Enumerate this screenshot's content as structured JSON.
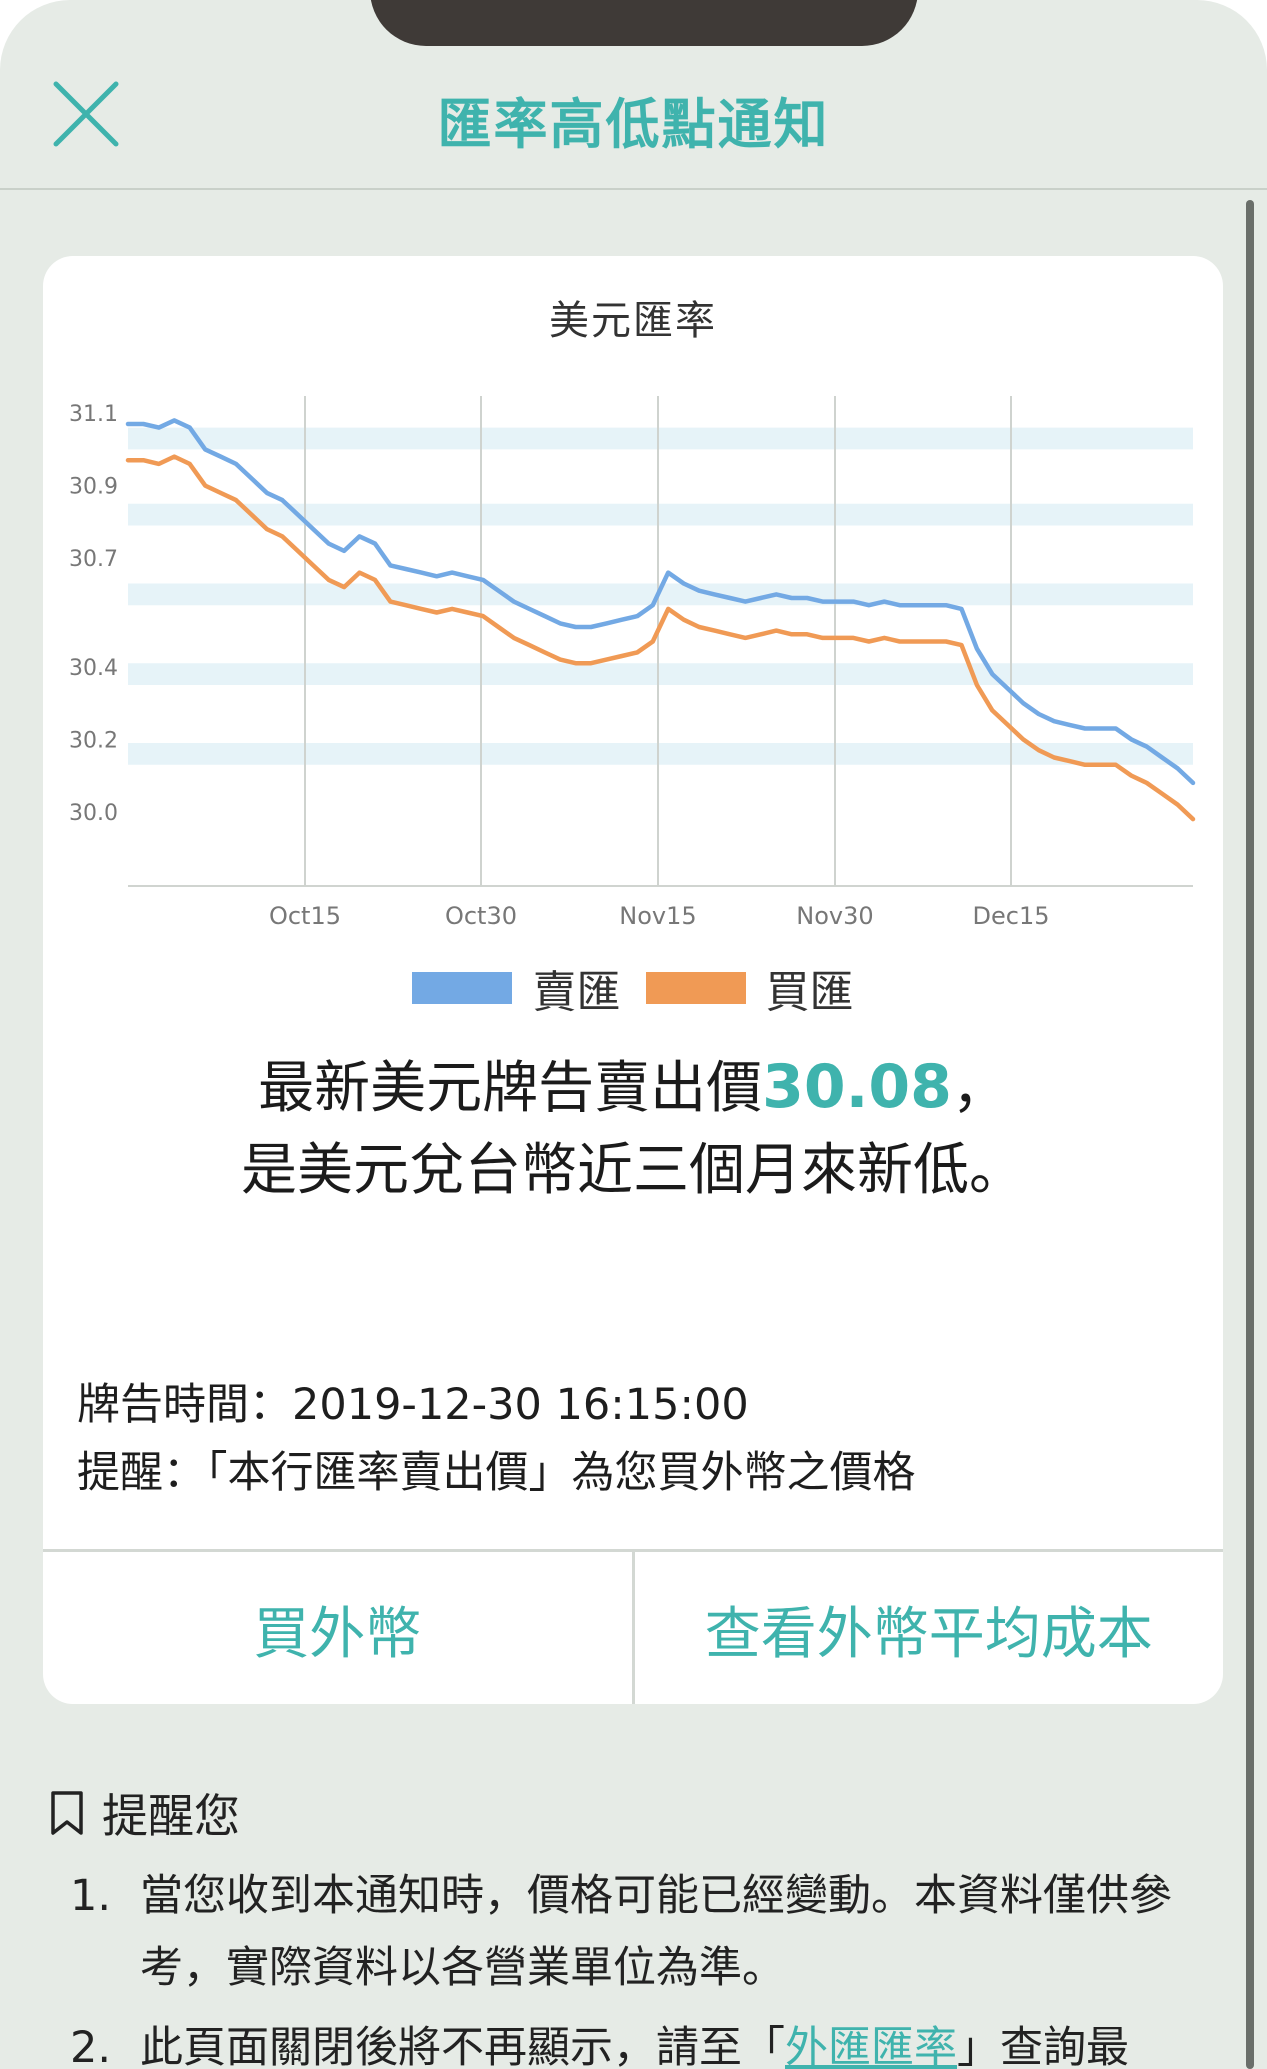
{
  "header": {
    "title": "匯率高低點通知"
  },
  "chart_data": {
    "type": "line",
    "title": "美元匯率",
    "x_ticks": [
      "Oct15",
      "Oct30",
      "Nov15",
      "Nov30",
      "Dec15"
    ],
    "y_ticks": [
      "31.1",
      "30.9",
      "30.7",
      "30.4",
      "30.2",
      "30.0"
    ],
    "ylim": [
      29.95,
      31.15
    ],
    "grid": "vertical lines at ticks, horizontal bands",
    "legend_position": "bottom",
    "series": [
      {
        "name": "賣匯",
        "color": "#73a9e4",
        "values": [
          31.07,
          31.07,
          31.06,
          31.08,
          31.06,
          31.0,
          30.98,
          30.96,
          30.92,
          30.88,
          30.86,
          30.82,
          30.78,
          30.74,
          30.72,
          30.76,
          30.74,
          30.68,
          30.67,
          30.66,
          30.65,
          30.66,
          30.65,
          30.64,
          30.61,
          30.58,
          30.56,
          30.54,
          30.52,
          30.51,
          30.51,
          30.52,
          30.53,
          30.54,
          30.57,
          30.66,
          30.63,
          30.61,
          30.6,
          30.59,
          30.58,
          30.59,
          30.6,
          30.59,
          30.59,
          30.58,
          30.58,
          30.58,
          30.57,
          30.58,
          30.57,
          30.57,
          30.57,
          30.57,
          30.56,
          30.45,
          30.38,
          30.34,
          30.3,
          30.27,
          30.25,
          30.24,
          30.23,
          30.23,
          30.23,
          30.2,
          30.18,
          30.15,
          30.12,
          30.08
        ]
      },
      {
        "name": "買匯",
        "color": "#f09a55",
        "values": [
          30.97,
          30.97,
          30.96,
          30.98,
          30.96,
          30.9,
          30.88,
          30.86,
          30.82,
          30.78,
          30.76,
          30.72,
          30.68,
          30.64,
          30.62,
          30.66,
          30.64,
          30.58,
          30.57,
          30.56,
          30.55,
          30.56,
          30.55,
          30.54,
          30.51,
          30.48,
          30.46,
          30.44,
          30.42,
          30.41,
          30.41,
          30.42,
          30.43,
          30.44,
          30.47,
          30.56,
          30.53,
          30.51,
          30.5,
          30.49,
          30.48,
          30.49,
          30.5,
          30.49,
          30.49,
          30.48,
          30.48,
          30.48,
          30.47,
          30.48,
          30.47,
          30.47,
          30.47,
          30.47,
          30.46,
          30.35,
          30.28,
          30.24,
          30.2,
          30.17,
          30.15,
          30.14,
          30.13,
          30.13,
          30.13,
          30.1,
          30.08,
          30.05,
          30.02,
          29.98
        ]
      }
    ]
  },
  "legend": {
    "sell_label": "賣匯",
    "buy_label": "買匯"
  },
  "message": {
    "line1_prefix": "最新美元牌告賣出價",
    "price": "30.08",
    "line1_suffix": "，",
    "line2": "是美元兌台幣近三個月來新低。"
  },
  "info": {
    "time_label": "牌告時間：",
    "time_value": "2019-12-30 16:15:00",
    "reminder_label": "提醒：",
    "reminder_text": "「本行匯率賣出價」為您買外幣之價格"
  },
  "actions": {
    "buy": "買外幣",
    "avg_cost": "查看外幣平均成本"
  },
  "notes": {
    "heading": "提醒您",
    "items": [
      {
        "num": "1.",
        "text": "當您收到本通知時，價格可能已經變動。本資料僅供參考，實際資料以各營業單位為準。"
      },
      {
        "num": "2.",
        "text_before": "此頁面關閉後將不再顯示，請至「",
        "link": "外匯匯率",
        "text_after": "」查詢最"
      }
    ]
  }
}
